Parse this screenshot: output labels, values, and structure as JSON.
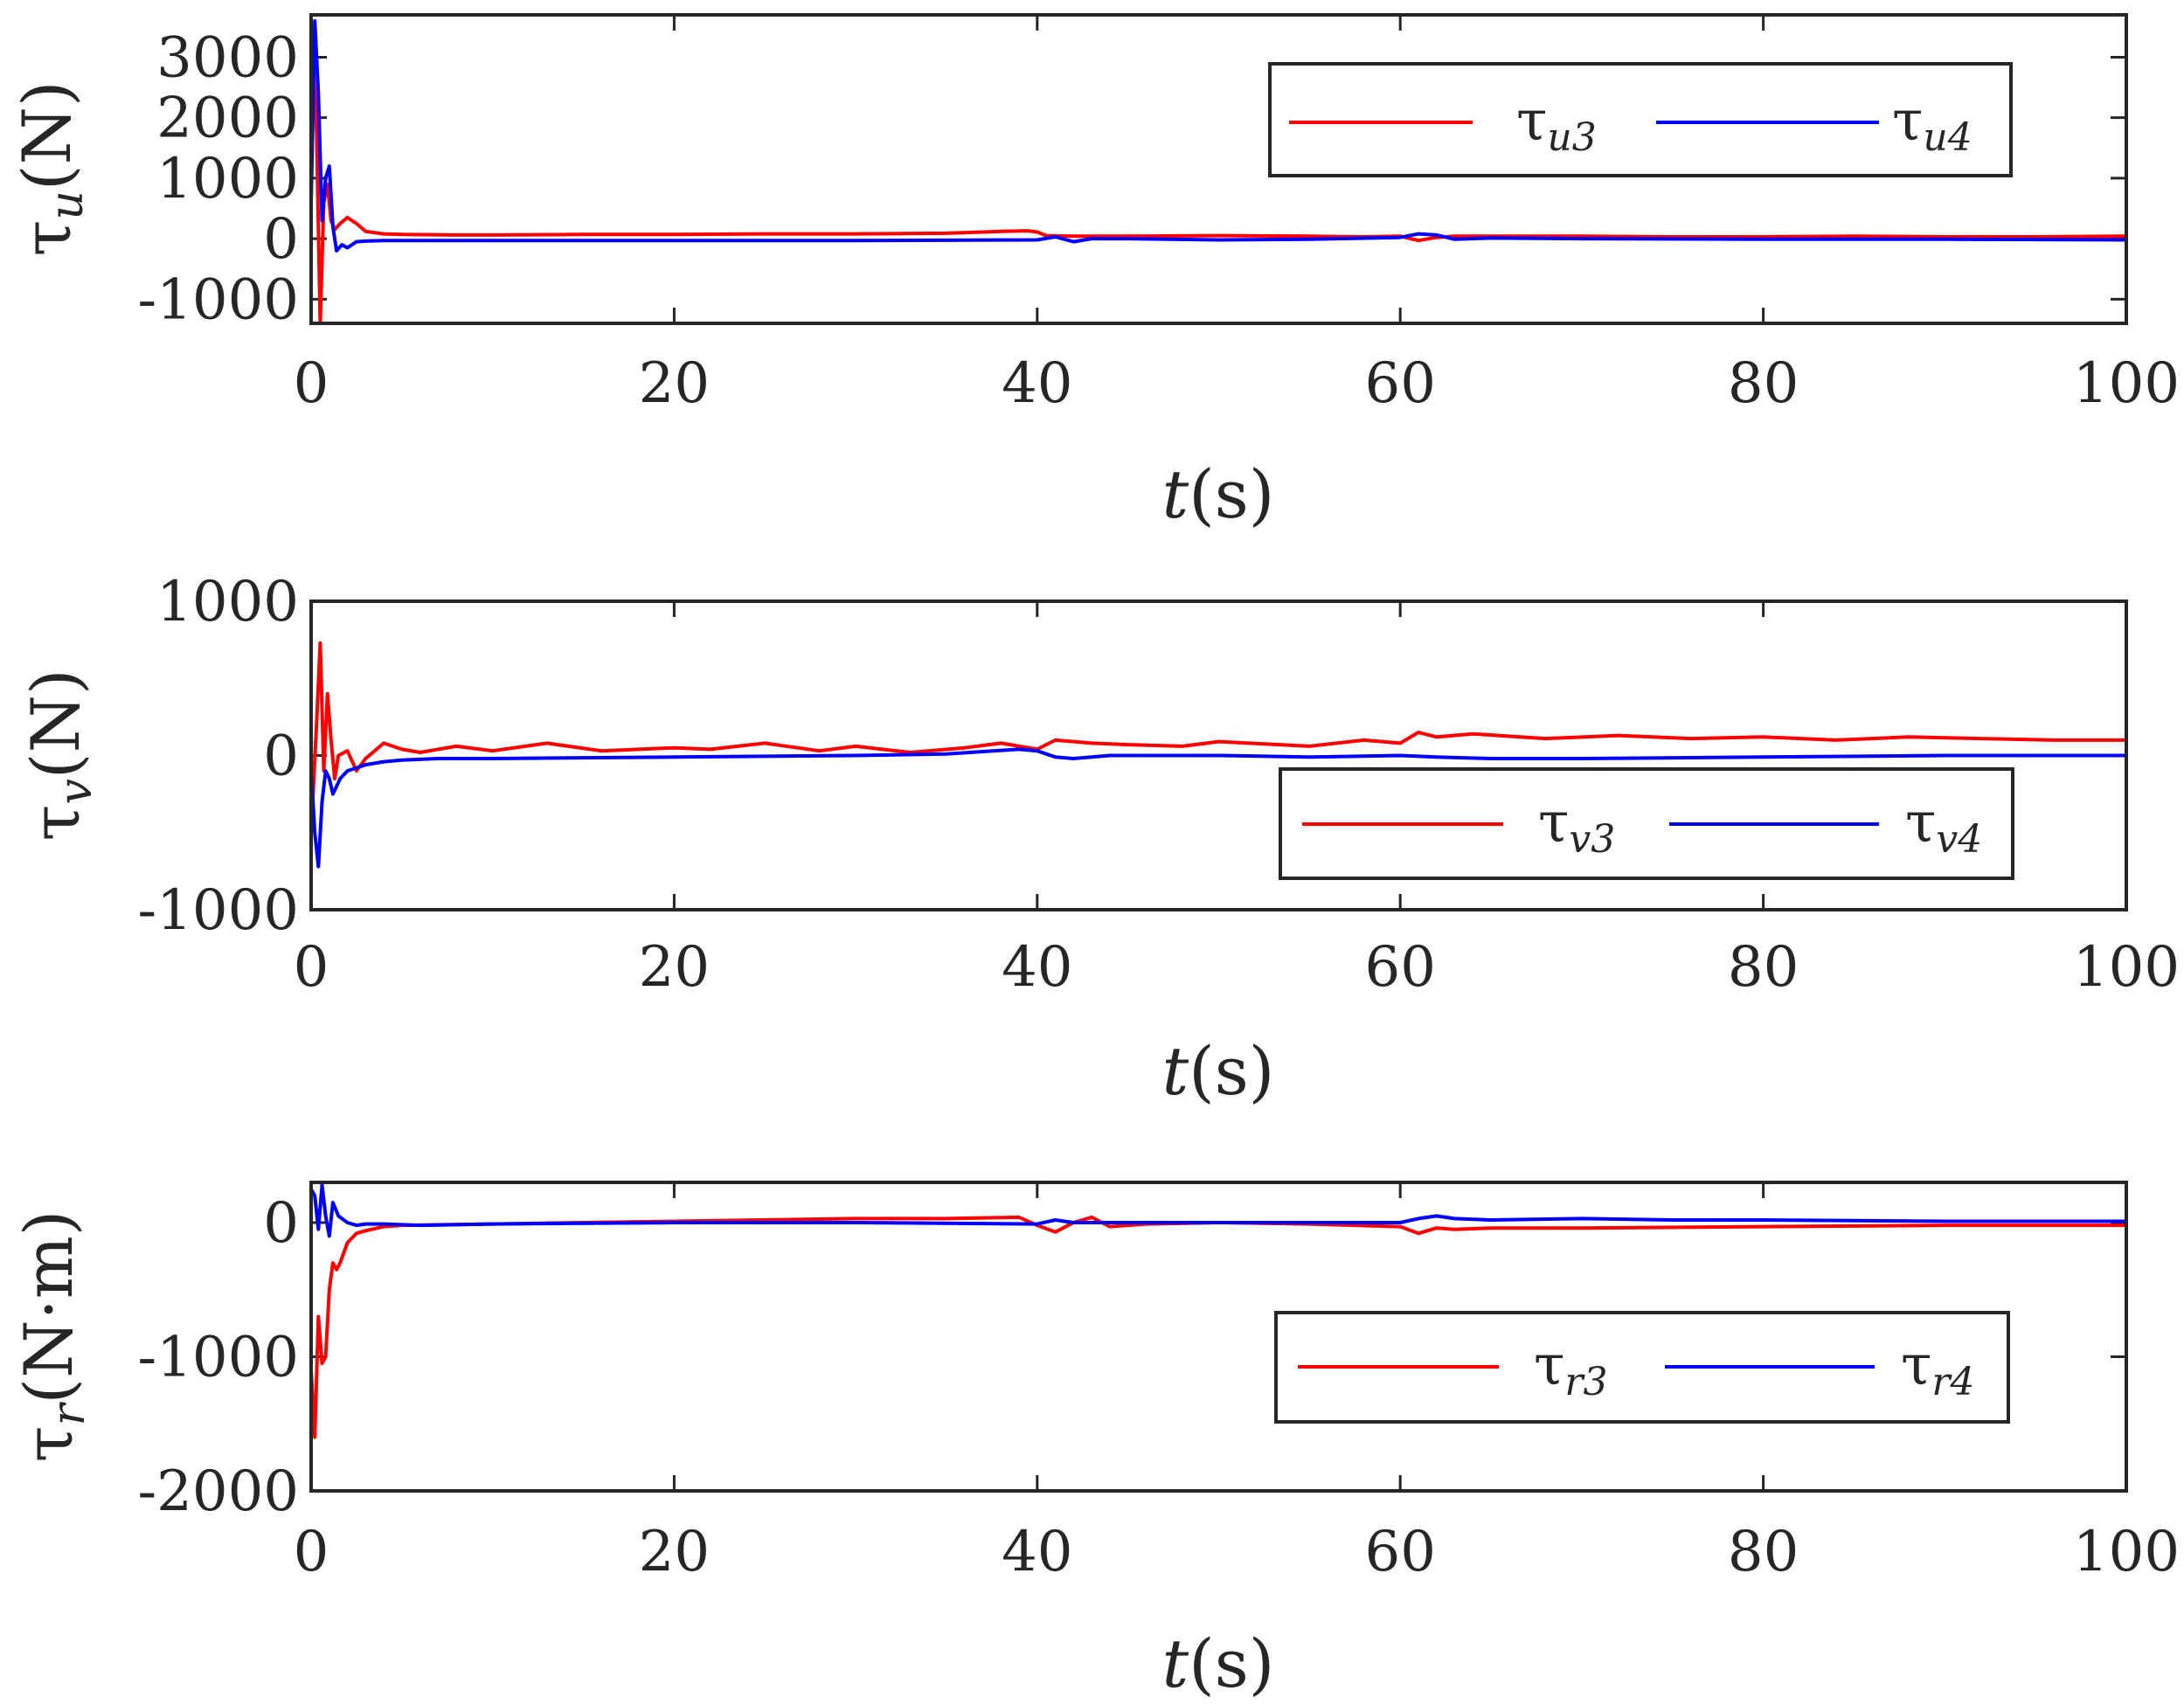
{
  "chart_data": [
    {
      "type": "line",
      "name": "tau-u",
      "ylabel_symbol": "τ",
      "ylabel_sub": "u",
      "ylabel_unit": "(N)",
      "xlabel_var": "t",
      "xlabel_unit": "(s)",
      "xlim": [
        0,
        100
      ],
      "ylim": [
        -1400,
        3700
      ],
      "xticks": [
        0,
        20,
        40,
        60,
        80,
        100
      ],
      "xtick_labels": [
        "0",
        "20",
        "40",
        "60",
        "80",
        "100"
      ],
      "yticks": [
        -1000,
        0,
        1000,
        2000,
        3000
      ],
      "ytick_labels": [
        "-1000",
        "0",
        "1000",
        "2000",
        "3000"
      ],
      "legend_position": "top-right",
      "series": [
        {
          "name": "τu3",
          "symbol": "τ",
          "sub": "u3",
          "color": "#ff0000",
          "x": [
            0,
            0.3,
            0.5,
            0.7,
            0.9,
            1.1,
            1.3,
            1.6,
            2,
            2.5,
            3,
            4,
            5,
            8,
            10,
            15,
            20,
            25,
            30,
            35,
            38,
            39.5,
            40,
            40.5,
            42,
            45,
            50,
            55,
            58,
            60,
            61,
            62,
            63,
            65,
            70,
            75,
            80,
            85,
            90,
            95,
            100
          ],
          "y": [
            3600,
            1800,
            -1400,
            600,
            900,
            300,
            150,
            250,
            350,
            250,
            120,
            80,
            70,
            60,
            60,
            70,
            70,
            80,
            80,
            90,
            120,
            130,
            110,
            50,
            40,
            40,
            50,
            40,
            30,
            40,
            -30,
            20,
            40,
            40,
            40,
            30,
            30,
            40,
            30,
            30,
            40
          ]
        },
        {
          "name": "τu4",
          "symbol": "τ",
          "sub": "u4",
          "color": "#0000ff",
          "x": [
            0,
            0.2,
            0.4,
            0.6,
            0.8,
            1,
            1.2,
            1.4,
            1.7,
            2,
            2.5,
            3,
            4,
            6,
            10,
            20,
            30,
            40,
            41,
            42,
            43,
            45,
            50,
            55,
            60,
            61,
            62,
            63,
            65,
            70,
            80,
            90,
            100
          ],
          "y": [
            600,
            3600,
            2400,
            300,
            1000,
            1200,
            200,
            -200,
            -100,
            -150,
            -50,
            -40,
            -30,
            -30,
            -30,
            -30,
            -30,
            -20,
            30,
            -50,
            0,
            0,
            -20,
            -10,
            20,
            80,
            60,
            -10,
            10,
            0,
            -10,
            -10,
            -20
          ]
        }
      ]
    },
    {
      "type": "line",
      "name": "tau-v",
      "ylabel_symbol": "τ",
      "ylabel_sub": "v",
      "ylabel_unit": "(N)",
      "xlabel_var": "t",
      "xlabel_unit": "(s)",
      "xlim": [
        0,
        100
      ],
      "ylim": [
        -1000,
        1000
      ],
      "xticks": [
        0,
        20,
        40,
        60,
        80,
        100
      ],
      "xtick_labels": [
        "0",
        "20",
        "40",
        "60",
        "80",
        "100"
      ],
      "yticks": [
        -1000,
        0,
        1000
      ],
      "ytick_labels": [
        "-1000",
        "0",
        "1000"
      ],
      "legend_position": "bottom-right",
      "series": [
        {
          "name": "τv3",
          "symbol": "τ",
          "sub": "v3",
          "color": "#ff0000",
          "x": [
            0,
            0.3,
            0.5,
            0.7,
            0.9,
            1.1,
            1.3,
            1.5,
            2,
            2.5,
            3,
            4,
            5,
            6,
            8,
            10,
            13,
            16,
            20,
            22,
            25,
            28,
            30,
            33,
            36,
            38,
            40,
            41,
            43,
            45,
            48,
            50,
            55,
            58,
            60,
            61,
            62,
            64,
            68,
            72,
            76,
            80,
            84,
            88,
            92,
            96,
            100
          ],
          "y": [
            -500,
            200,
            730,
            -100,
            400,
            100,
            -150,
            0,
            30,
            -100,
            -20,
            80,
            40,
            20,
            60,
            30,
            80,
            30,
            50,
            40,
            80,
            30,
            60,
            20,
            50,
            80,
            40,
            100,
            80,
            70,
            60,
            90,
            60,
            100,
            80,
            150,
            120,
            140,
            110,
            130,
            110,
            120,
            100,
            120,
            110,
            100,
            100
          ]
        },
        {
          "name": "τv4",
          "symbol": "τ",
          "sub": "v4",
          "color": "#0000ff",
          "x": [
            0,
            0.2,
            0.4,
            0.6,
            0.8,
            1,
            1.2,
            1.4,
            1.6,
            2,
            2.5,
            3,
            4,
            5,
            7,
            10,
            20,
            30,
            35,
            39,
            40,
            41,
            42,
            44,
            50,
            55,
            60,
            62,
            65,
            70,
            80,
            90,
            100
          ],
          "y": [
            -100,
            -500,
            -720,
            -300,
            -100,
            -150,
            -250,
            -200,
            -150,
            -100,
            -80,
            -60,
            -40,
            -30,
            -20,
            -20,
            -10,
            0,
            10,
            40,
            30,
            -10,
            -20,
            0,
            0,
            -10,
            0,
            -10,
            -20,
            -20,
            -10,
            0,
            0
          ]
        }
      ]
    },
    {
      "type": "line",
      "name": "tau-r",
      "ylabel_symbol": "τ",
      "ylabel_sub": "r",
      "ylabel_unit": "(N·m)",
      "xlabel_var": "t",
      "xlabel_unit": "(s)",
      "xlim": [
        0,
        100
      ],
      "ylim": [
        -2000,
        300
      ],
      "xticks": [
        0,
        20,
        40,
        60,
        80,
        100
      ],
      "xtick_labels": [
        "0",
        "20",
        "40",
        "60",
        "80",
        "100"
      ],
      "yticks": [
        -2000,
        -1000,
        0
      ],
      "ytick_labels": [
        "-2000",
        "-1000",
        "0"
      ],
      "legend_position": "right",
      "series": [
        {
          "name": "τr3",
          "symbol": "τ",
          "sub": "r3",
          "color": "#ff0000",
          "x": [
            0,
            0.2,
            0.4,
            0.6,
            0.8,
            1,
            1.2,
            1.4,
            1.6,
            2,
            2.5,
            3,
            4,
            5,
            10,
            20,
            30,
            35,
            39,
            40,
            41,
            42,
            43,
            44,
            46,
            50,
            55,
            60,
            61,
            62,
            63,
            65,
            70,
            80,
            90,
            100
          ],
          "y": [
            -1100,
            -1600,
            -700,
            -1050,
            -1000,
            -500,
            -300,
            -350,
            -300,
            -150,
            -80,
            -60,
            -30,
            -20,
            -10,
            10,
            30,
            30,
            40,
            -20,
            -70,
            0,
            40,
            -30,
            -10,
            0,
            -10,
            -30,
            -80,
            -40,
            -50,
            -40,
            -40,
            -30,
            -20,
            -20
          ]
        },
        {
          "name": "τr4",
          "symbol": "τ",
          "sub": "r4",
          "color": "#0000ff",
          "x": [
            0,
            0.2,
            0.4,
            0.6,
            0.8,
            1,
            1.2,
            1.5,
            2,
            2.5,
            3,
            4,
            6,
            10,
            20,
            30,
            40,
            41,
            42,
            45,
            50,
            55,
            60,
            61,
            62,
            63,
            65,
            70,
            75,
            80,
            90,
            100
          ],
          "y": [
            250,
            200,
            -50,
            280,
            50,
            -100,
            150,
            50,
            0,
            -20,
            -10,
            -10,
            -20,
            -10,
            0,
            0,
            -10,
            20,
            0,
            0,
            0,
            0,
            0,
            30,
            50,
            30,
            20,
            30,
            20,
            20,
            10,
            10
          ]
        }
      ]
    }
  ]
}
